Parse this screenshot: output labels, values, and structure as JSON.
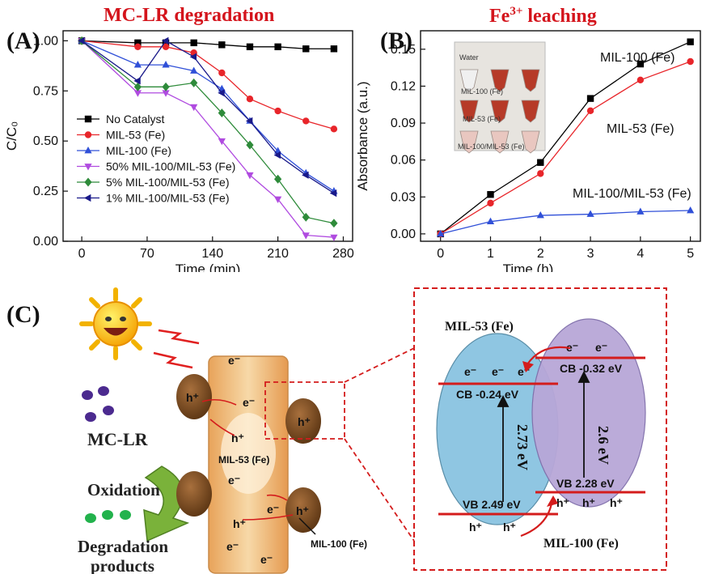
{
  "figure": {
    "panel_a": {
      "letter": "(A)",
      "title": "MC-LR degradation"
    },
    "panel_b": {
      "letter": "(B)",
      "title_main": "Fe",
      "title_sup": "3+",
      "title_rest": " leaching"
    },
    "panel_c": {
      "letter": "(C)"
    }
  },
  "chart_data": [
    {
      "type": "line",
      "xlabel": "Time (min)",
      "ylabel": "C/C₀",
      "xlim": [
        -20,
        290
      ],
      "ylim": [
        0,
        1.05
      ],
      "xticks": [
        0,
        70,
        140,
        210,
        280
      ],
      "yticks": [
        0.0,
        0.25,
        0.5,
        0.75,
        1.0
      ],
      "ytick_labels": [
        "0.00",
        "0.25",
        "0.50",
        "0.75",
        "1.00"
      ],
      "legend_position": "lower-left",
      "series": [
        {
          "name": "No Catalyst",
          "color": "#000000",
          "marker": "square",
          "x": [
            0,
            60,
            90,
            120,
            150,
            180,
            210,
            240,
            270
          ],
          "y": [
            1.0,
            0.99,
            0.99,
            0.99,
            0.98,
            0.97,
            0.97,
            0.96,
            0.96
          ]
        },
        {
          "name": "MIL-53 (Fe)",
          "color": "#e8252a",
          "marker": "circle",
          "x": [
            0,
            60,
            90,
            120,
            150,
            180,
            210,
            240,
            270
          ],
          "y": [
            1.0,
            0.97,
            0.97,
            0.94,
            0.84,
            0.71,
            0.65,
            0.6,
            0.56
          ]
        },
        {
          "name": "MIL-100 (Fe)",
          "color": "#3050d8",
          "marker": "triangle-up",
          "x": [
            0,
            60,
            90,
            120,
            150,
            180,
            210,
            240,
            270
          ],
          "y": [
            1.0,
            0.88,
            0.88,
            0.85,
            0.76,
            0.6,
            0.45,
            0.34,
            0.25
          ]
        },
        {
          "name": "50% MIL-100/MIL-53 (Fe)",
          "color": "#b04be0",
          "marker": "triangle-down",
          "x": [
            0,
            60,
            90,
            120,
            150,
            180,
            210,
            240,
            270
          ],
          "y": [
            1.0,
            0.74,
            0.74,
            0.67,
            0.5,
            0.33,
            0.21,
            0.03,
            0.02
          ]
        },
        {
          "name": "5% MIL-100/MIL-53 (Fe)",
          "color": "#2e8b3a",
          "marker": "diamond",
          "x": [
            0,
            60,
            90,
            120,
            150,
            180,
            210,
            240,
            270
          ],
          "y": [
            1.0,
            0.77,
            0.77,
            0.79,
            0.64,
            0.48,
            0.31,
            0.12,
            0.09
          ]
        },
        {
          "name": "1% MIL-100/MIL-53 (Fe)",
          "color": "#1a1a8a",
          "marker": "triangle-left",
          "x": [
            0,
            60,
            90,
            120,
            150,
            180,
            210,
            240,
            270
          ],
          "y": [
            1.0,
            0.8,
            1.0,
            0.92,
            0.74,
            0.6,
            0.43,
            0.33,
            0.24
          ]
        }
      ]
    },
    {
      "type": "line",
      "xlabel": "Time (h)",
      "ylabel": "Absorbance (a.u.)",
      "xlim": [
        -0.4,
        5.2
      ],
      "ylim": [
        -0.006,
        0.165
      ],
      "xticks": [
        0,
        1,
        2,
        3,
        4,
        5
      ],
      "yticks": [
        0.0,
        0.03,
        0.06,
        0.09,
        0.12,
        0.15
      ],
      "ytick_labels": [
        "0.00",
        "0.03",
        "0.06",
        "0.09",
        "0.12",
        "0.15"
      ],
      "annotations": [
        "MIL-100 (Fe)",
        "MIL-53 (Fe)",
        "MIL-100/MIL-53 (Fe)"
      ],
      "inset_labels": [
        "Water",
        "MIL-100 (Fe)",
        "MIL-53 (Fe)",
        "MIL-100/MIL-53 (Fe)"
      ],
      "series": [
        {
          "name": "MIL-100 (Fe)",
          "color": "#000000",
          "marker": "square",
          "x": [
            0,
            1,
            2,
            3,
            4,
            5
          ],
          "y": [
            0.0,
            0.032,
            0.058,
            0.11,
            0.138,
            0.156
          ]
        },
        {
          "name": "MIL-53 (Fe)",
          "color": "#e8252a",
          "marker": "circle",
          "x": [
            0,
            1,
            2,
            3,
            4,
            5
          ],
          "y": [
            0.0,
            0.025,
            0.049,
            0.1,
            0.125,
            0.14
          ]
        },
        {
          "name": "MIL-100/MIL-53 (Fe)",
          "color": "#3050d8",
          "marker": "triangle-up",
          "x": [
            0,
            1,
            2,
            3,
            4,
            5
          ],
          "y": [
            0.0,
            0.01,
            0.015,
            0.016,
            0.018,
            0.019
          ]
        }
      ]
    }
  ],
  "schematic": {
    "mc_lr": "MC-LR",
    "oxidation": "Oxidation",
    "degradation_1": "Degradation",
    "degradation_2": "products",
    "mil53_label": "MIL-53 (Fe)",
    "mil100_label": "MIL-100 (Fe)",
    "electron": "e⁻",
    "hole": "h⁺",
    "band": {
      "mil53_title": "MIL-53 (Fe)",
      "mil100_title": "MIL-100 (Fe)",
      "cb53": "CB -0.24 eV",
      "vb53": "VB  2.49 eV",
      "cb100": "CB -0.32 eV",
      "vb100": "VB  2.28 eV",
      "gap53": "2.73 eV",
      "gap100": "2.6 eV"
    }
  }
}
